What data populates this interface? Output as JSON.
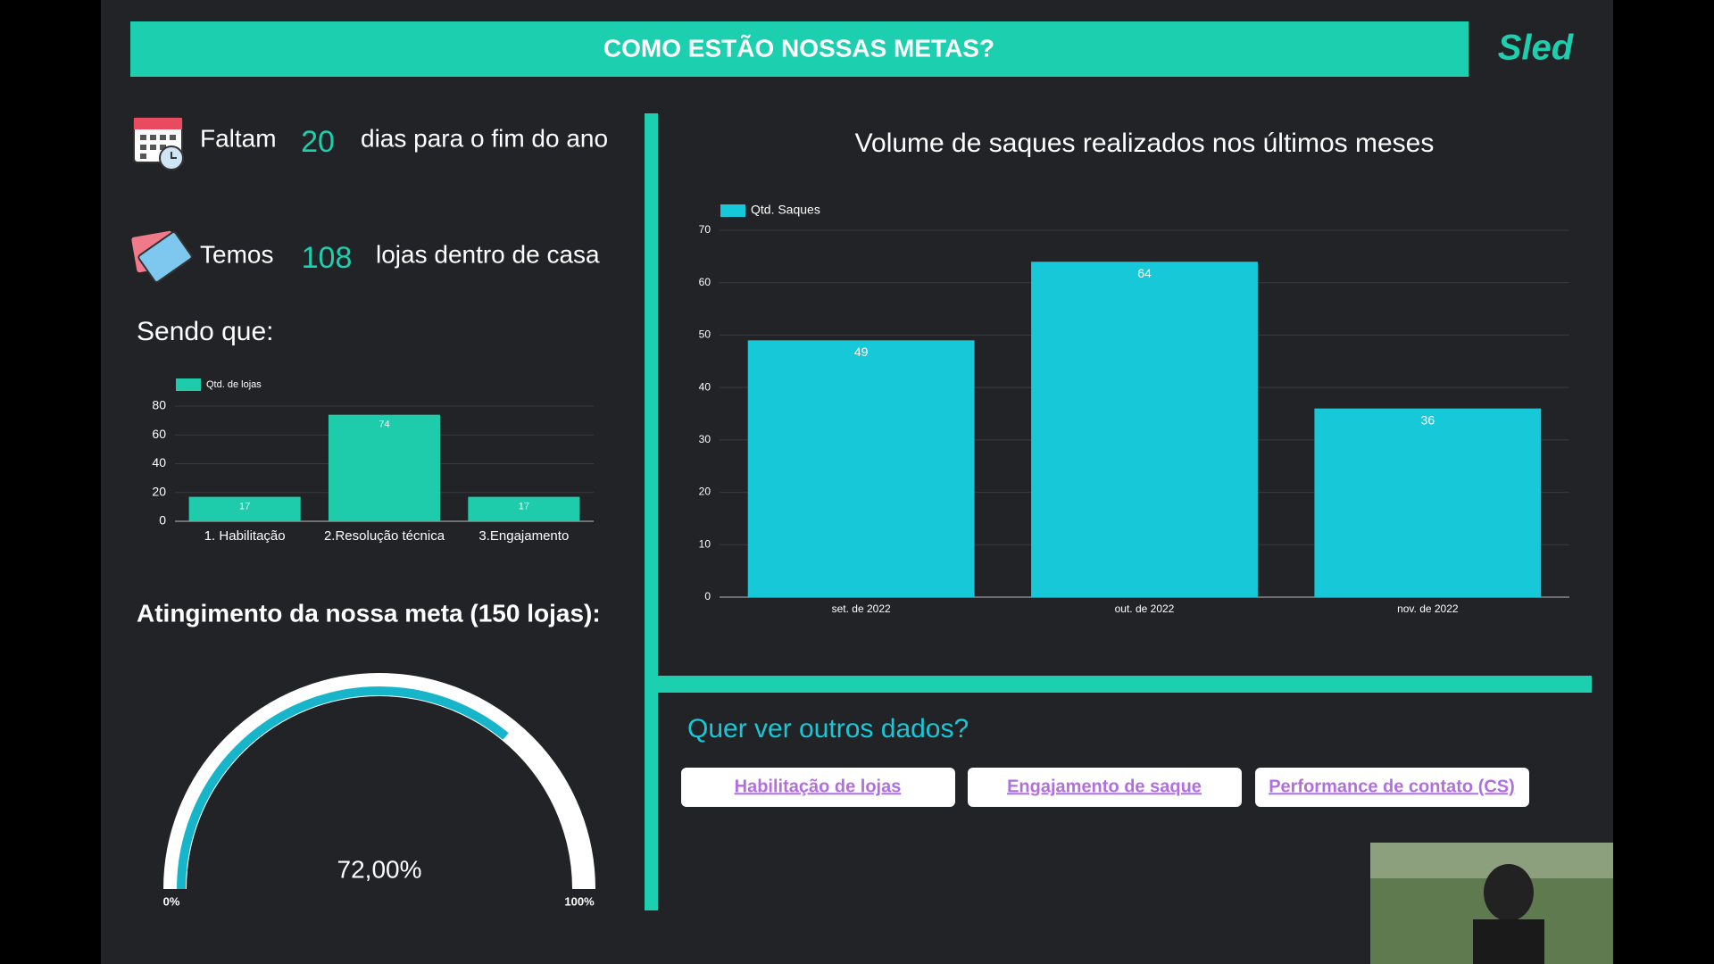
{
  "header": {
    "title": "COMO ESTÃO NOSSAS METAS?",
    "logo": "Sled"
  },
  "stats": [
    {
      "prefix": "Faltam",
      "number": 20,
      "suffix": "dias para o fim do ano"
    },
    {
      "prefix": "Temos",
      "number": 108,
      "suffix": "lojas dentro de casa"
    }
  ],
  "subheading": "Sendo que:",
  "gauge_heading": "Atingimento da nossa meta (150 lojas):",
  "links": {
    "heading": "Quer ver outros dados?",
    "buttons": [
      "Habilitação de lojas",
      "Engajamento de saque",
      "Performance de contato (CS)"
    ]
  },
  "chart_data": [
    {
      "type": "bar",
      "categories": [
        "1. Habilitação",
        "2.Resolução técnica",
        "3.Engajamento"
      ],
      "series": [
        {
          "name": "Qtd. de lojas",
          "color": "#1ecbab",
          "values": [
            17,
            74,
            17
          ]
        }
      ],
      "ylim": [
        0,
        80
      ],
      "yticks": [
        0,
        20,
        40,
        60,
        80
      ],
      "grid": true
    },
    {
      "type": "bar",
      "title": "Volume de saques realizados nos últimos meses",
      "categories": [
        "set. de 2022",
        "out. de 2022",
        "nov. de 2022"
      ],
      "series": [
        {
          "name": "Qtd. Saques",
          "color": "#17c8d8",
          "values": [
            49,
            64,
            36
          ]
        }
      ],
      "ylim": [
        0,
        70
      ],
      "yticks": [
        0,
        10,
        20,
        30,
        40,
        50,
        60,
        70
      ],
      "grid": true
    },
    {
      "type": "gauge",
      "value": 72,
      "value_label": "72,00%",
      "color": "#17b5c9",
      "min": {
        "value": 0,
        "label": "0%"
      },
      "max": {
        "value": 100,
        "label": "100%"
      }
    }
  ]
}
